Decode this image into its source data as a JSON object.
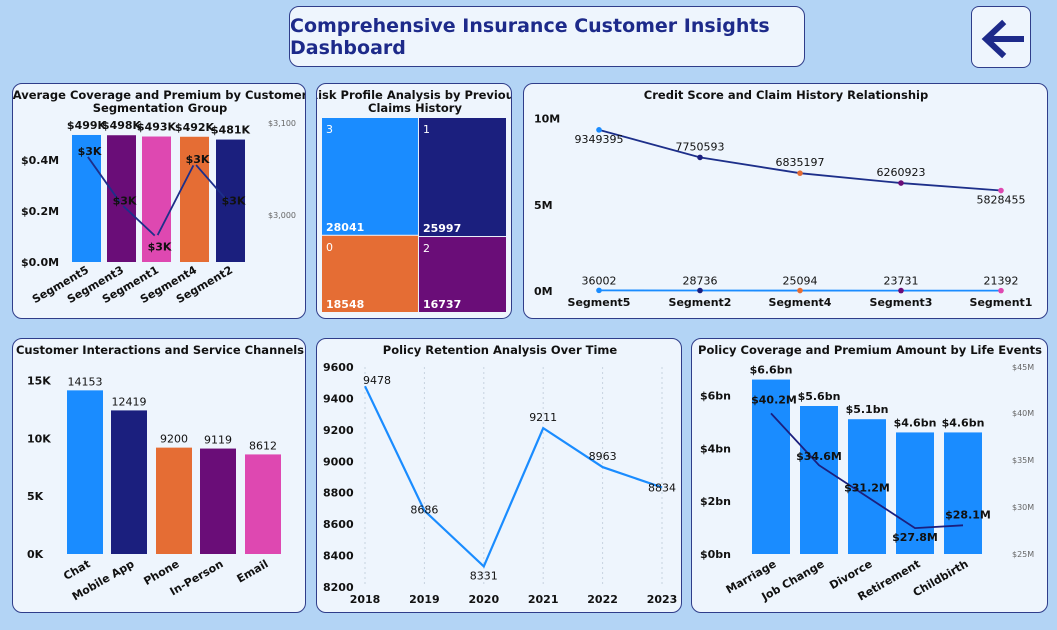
{
  "header": {
    "title": "Comprehensive Insurance Customer Insights Dashboard"
  },
  "colors": {
    "blue": "#1a8cff",
    "navy": "#1b1f7e",
    "orange": "#e56d34",
    "purple": "#6a0d78",
    "pink": "#de48b1",
    "line": "#1d2f8a",
    "retention_line": "#1a8cff"
  },
  "chart_data": [
    {
      "id": "coverage_premium_segment",
      "type": "bar",
      "title": "Average Coverage and Premium by Customer Segmentation Group",
      "categories": [
        "Segment5",
        "Segment3",
        "Segment1",
        "Segment4",
        "Segment2"
      ],
      "series": [
        {
          "values": [
            499000,
            498000,
            493000,
            492000,
            481000
          ],
          "labels": [
            "$499K",
            "$498K",
            "$493K",
            "$492K",
            "$481K"
          ]
        },
        {
          "values": [
            3070,
            3010,
            2970,
            3060,
            3010
          ],
          "labels": [
            "$3K",
            "$3K",
            "$3K",
            "$3K",
            "$3K"
          ],
          "render": "line"
        }
      ],
      "y_ticks": [
        "$0.0M",
        "$0.2M",
        "$0.4M"
      ],
      "y2_ticks": [
        "$3,100",
        "$3,000"
      ],
      "ylim": [
        0,
        0.55
      ],
      "y2lim": [
        2940,
        3110
      ]
    },
    {
      "id": "risk_profile",
      "type": "heatmap",
      "title": "Risk Profile Analysis by Previous Claims History",
      "cells": [
        {
          "category": "3",
          "value": 28041
        },
        {
          "category": "1",
          "value": 25997
        },
        {
          "category": "0",
          "value": 18548
        },
        {
          "category": "2",
          "value": 16737
        }
      ]
    },
    {
      "id": "credit_claim",
      "type": "line",
      "title": "Credit Score and Claim History Relationship",
      "categories": [
        "Segment5",
        "Segment2",
        "Segment4",
        "Segment3",
        "Segment1"
      ],
      "series": [
        {
          "values": [
            9349395,
            7750593,
            6835197,
            6260923,
            5828455
          ]
        },
        {
          "values": [
            36002,
            28736,
            25094,
            23731,
            21392
          ]
        }
      ],
      "y_ticks": [
        "0M",
        "5M",
        "10M"
      ],
      "ylim": [
        0,
        10500000
      ]
    },
    {
      "id": "interactions",
      "type": "bar",
      "title": "Customer Interactions and Service Channels",
      "categories": [
        "Chat",
        "Mobile App",
        "Phone",
        "In-Person",
        "Email"
      ],
      "values": [
        14153,
        12419,
        9200,
        9119,
        8612
      ],
      "y_ticks": [
        "0K",
        "5K",
        "10K",
        "15K"
      ],
      "ylim": [
        0,
        16000
      ]
    },
    {
      "id": "retention",
      "type": "line",
      "title": "Policy Retention Analysis Over Time",
      "x": [
        "2018",
        "2019",
        "2020",
        "2021",
        "2022",
        "2023"
      ],
      "values": [
        9478,
        8686,
        8331,
        9211,
        8963,
        8834
      ],
      "y_ticks": [
        "8200",
        "8400",
        "8600",
        "8800",
        "9000",
        "9200",
        "9400",
        "9600"
      ],
      "ylim": [
        8200,
        9600
      ]
    },
    {
      "id": "life_events",
      "type": "bar",
      "title": "Policy Coverage and Premium Amount by Life Events",
      "categories": [
        "Marriage",
        "Job Change",
        "Divorce",
        "Retirement",
        "Childbirth"
      ],
      "series": [
        {
          "values": [
            6.6,
            5.6,
            5.1,
            4.6,
            4.6
          ],
          "labels": [
            "$6.6bn",
            "$5.6bn",
            "$5.1bn",
            "$4.6bn",
            "$4.6bn"
          ]
        },
        {
          "values": [
            40.2,
            34.6,
            31.2,
            27.8,
            28.1
          ],
          "labels": [
            "$40.2M",
            "$34.6M",
            "$31.2M",
            "$27.8M",
            "$28.1M"
          ],
          "render": "line"
        }
      ],
      "y_ticks": [
        "$0bn",
        "$2bn",
        "$4bn",
        "$6bn"
      ],
      "y2_ticks": [
        "$25M",
        "$30M",
        "$35M",
        "$40M",
        "$45M"
      ],
      "ylim": [
        0,
        7
      ],
      "y2lim": [
        25,
        45
      ]
    }
  ]
}
